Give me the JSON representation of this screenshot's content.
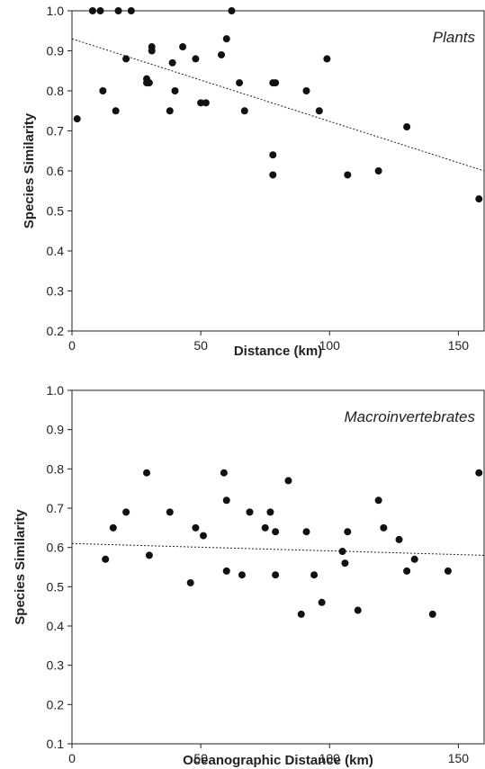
{
  "chart_data": [
    {
      "type": "scatter",
      "annotation": "Plants",
      "xlabel": "Distance (km)",
      "ylabel": "Species Similarity",
      "xlim": [
        0,
        160
      ],
      "ylim": [
        0.2,
        1.0
      ],
      "xticks": [
        "0",
        "50",
        "100",
        "150"
      ],
      "yticks": [
        "0.2",
        "0.3",
        "0.4",
        "0.5",
        "0.6",
        "0.7",
        "0.8",
        "0.9",
        "1.0"
      ],
      "points": [
        {
          "x": 2,
          "y": 0.73
        },
        {
          "x": 8,
          "y": 1.0
        },
        {
          "x": 11,
          "y": 1.0
        },
        {
          "x": 12,
          "y": 0.8
        },
        {
          "x": 17,
          "y": 0.75
        },
        {
          "x": 18,
          "y": 1.0
        },
        {
          "x": 21,
          "y": 0.88
        },
        {
          "x": 23,
          "y": 1.0
        },
        {
          "x": 29,
          "y": 0.83
        },
        {
          "x": 29,
          "y": 0.82
        },
        {
          "x": 30,
          "y": 0.82
        },
        {
          "x": 31,
          "y": 0.9
        },
        {
          "x": 31,
          "y": 0.91
        },
        {
          "x": 38,
          "y": 0.75
        },
        {
          "x": 39,
          "y": 0.87
        },
        {
          "x": 40,
          "y": 0.8
        },
        {
          "x": 43,
          "y": 0.91
        },
        {
          "x": 48,
          "y": 0.88
        },
        {
          "x": 50,
          "y": 0.77
        },
        {
          "x": 52,
          "y": 0.77
        },
        {
          "x": 58,
          "y": 0.89
        },
        {
          "x": 60,
          "y": 0.93
        },
        {
          "x": 62,
          "y": 1.0
        },
        {
          "x": 65,
          "y": 0.82
        },
        {
          "x": 67,
          "y": 0.75
        },
        {
          "x": 78,
          "y": 0.82
        },
        {
          "x": 79,
          "y": 0.82
        },
        {
          "x": 78,
          "y": 0.64
        },
        {
          "x": 78,
          "y": 0.59
        },
        {
          "x": 91,
          "y": 0.8
        },
        {
          "x": 96,
          "y": 0.75
        },
        {
          "x": 99,
          "y": 0.88
        },
        {
          "x": 107,
          "y": 0.59
        },
        {
          "x": 119,
          "y": 0.6
        },
        {
          "x": 130,
          "y": 0.71
        },
        {
          "x": 158,
          "y": 0.53
        }
      ],
      "trendline": {
        "x": [
          0,
          160
        ],
        "y": [
          0.93,
          0.6
        ],
        "style": "dotted"
      },
      "grid": false
    },
    {
      "type": "scatter",
      "annotation": "Macroinvertebrates",
      "xlabel": "Oceanographic Distance (km)",
      "ylabel": "Species Similarity",
      "xlim": [
        0,
        160
      ],
      "ylim": [
        0.1,
        1.0
      ],
      "xticks": [
        "0",
        "50",
        "100",
        "150"
      ],
      "yticks": [
        "0.1",
        "0.2",
        "0.3",
        "0.4",
        "0.5",
        "0.6",
        "0.7",
        "0.8",
        "0.9",
        "1.0"
      ],
      "points": [
        {
          "x": 13,
          "y": 0.57
        },
        {
          "x": 16,
          "y": 0.65
        },
        {
          "x": 21,
          "y": 0.69
        },
        {
          "x": 29,
          "y": 0.79
        },
        {
          "x": 30,
          "y": 0.58
        },
        {
          "x": 38,
          "y": 0.69
        },
        {
          "x": 46,
          "y": 0.51
        },
        {
          "x": 48,
          "y": 0.65
        },
        {
          "x": 51,
          "y": 0.63
        },
        {
          "x": 59,
          "y": 0.79
        },
        {
          "x": 60,
          "y": 0.72
        },
        {
          "x": 60,
          "y": 0.54
        },
        {
          "x": 66,
          "y": 0.53
        },
        {
          "x": 69,
          "y": 0.69
        },
        {
          "x": 75,
          "y": 0.65
        },
        {
          "x": 77,
          "y": 0.69
        },
        {
          "x": 79,
          "y": 0.64
        },
        {
          "x": 79,
          "y": 0.53
        },
        {
          "x": 84,
          "y": 0.77
        },
        {
          "x": 89,
          "y": 0.43
        },
        {
          "x": 91,
          "y": 0.64
        },
        {
          "x": 94,
          "y": 0.53
        },
        {
          "x": 97,
          "y": 0.46
        },
        {
          "x": 105,
          "y": 0.59
        },
        {
          "x": 106,
          "y": 0.56
        },
        {
          "x": 107,
          "y": 0.64
        },
        {
          "x": 111,
          "y": 0.44
        },
        {
          "x": 119,
          "y": 0.72
        },
        {
          "x": 121,
          "y": 0.65
        },
        {
          "x": 127,
          "y": 0.62
        },
        {
          "x": 130,
          "y": 0.54
        },
        {
          "x": 133,
          "y": 0.57
        },
        {
          "x": 140,
          "y": 0.43
        },
        {
          "x": 146,
          "y": 0.54
        },
        {
          "x": 158,
          "y": 0.79
        }
      ],
      "trendline": {
        "x": [
          0,
          160
        ],
        "y": [
          0.61,
          0.58
        ],
        "style": "dotted"
      },
      "grid": false
    }
  ]
}
